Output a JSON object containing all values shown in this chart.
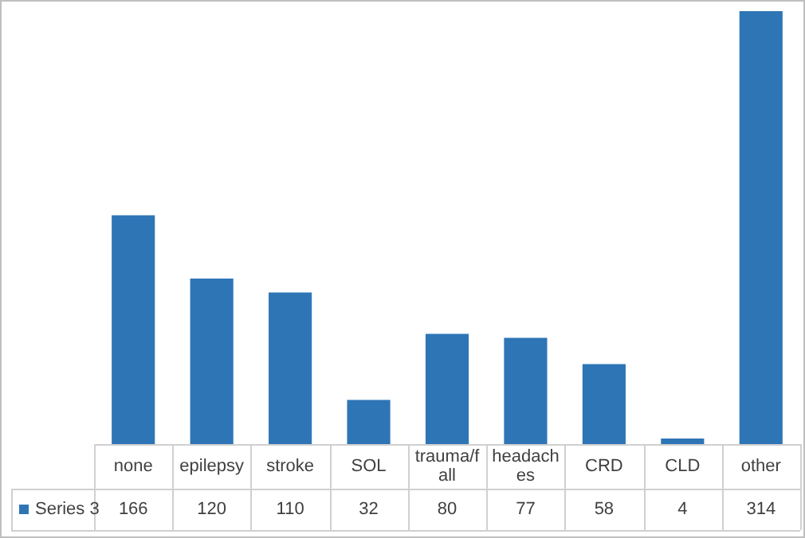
{
  "chart_data": {
    "type": "bar",
    "categories": [
      "none",
      "epilepsy",
      "stroke",
      "SOL",
      "trauma/fall",
      "headaches",
      "CRD",
      "CLD",
      "other"
    ],
    "series": [
      {
        "name": "Series 3",
        "color": "#2e75b6",
        "values": [
          166,
          120,
          110,
          32,
          80,
          77,
          58,
          4,
          314
        ]
      }
    ],
    "data_labels": true,
    "legend": "bottom left"
  }
}
